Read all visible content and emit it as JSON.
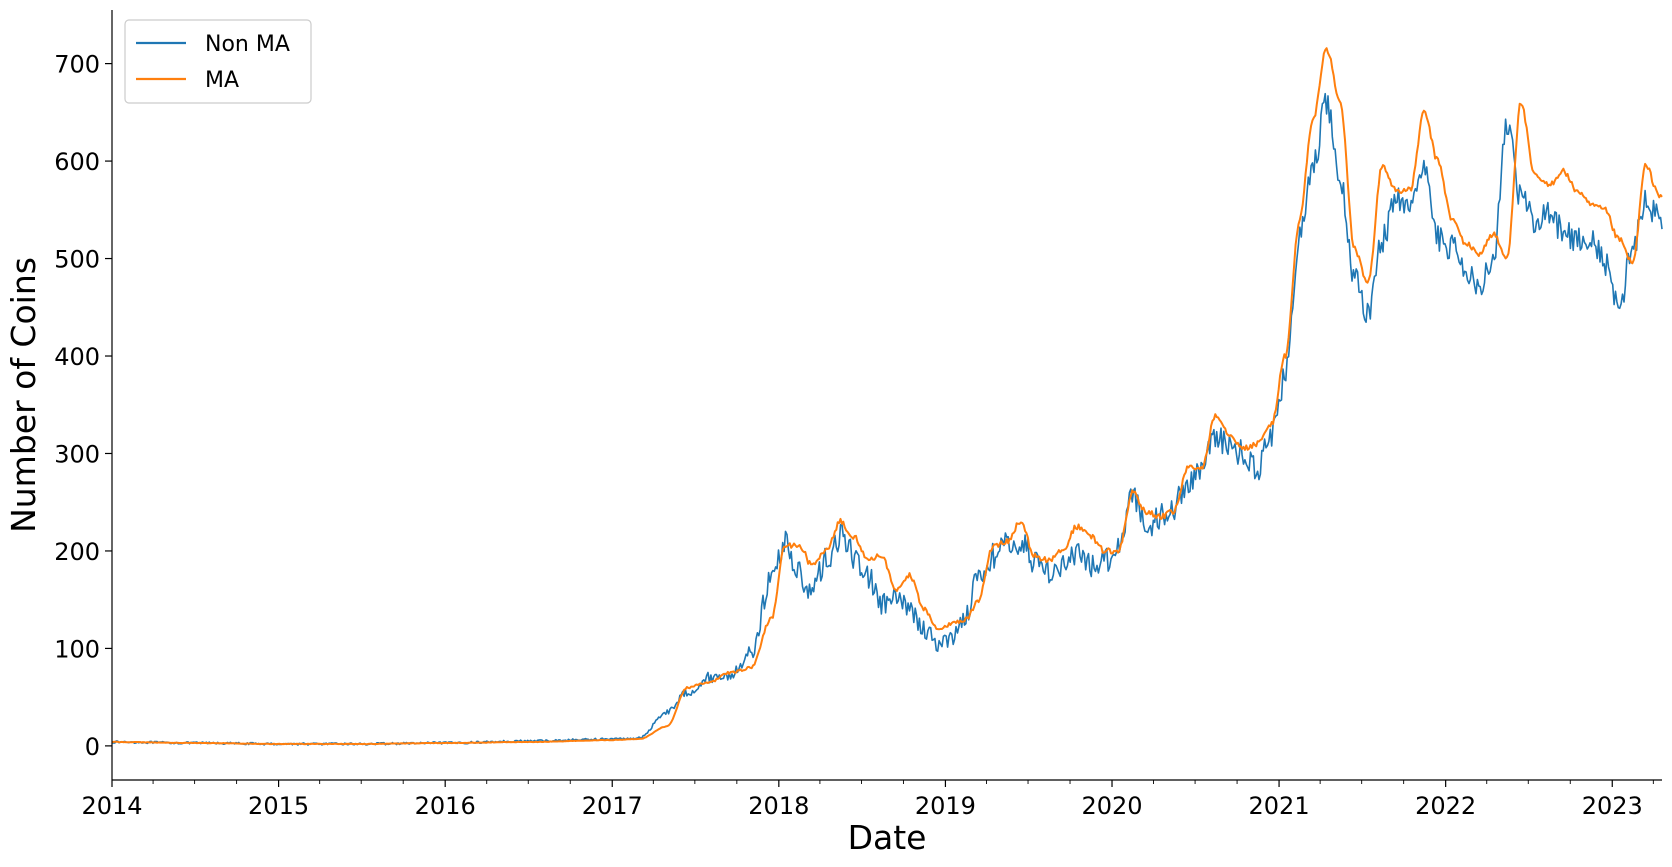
{
  "chart_data": {
    "type": "line",
    "title": "",
    "xlabel": "Date",
    "ylabel": "Number of Coins",
    "xlim": [
      "2014-01-01",
      "2023-04-20"
    ],
    "ylim": [
      -35,
      755
    ],
    "x_ticks": [
      "2014",
      "2015",
      "2016",
      "2017",
      "2018",
      "2019",
      "2020",
      "2021",
      "2022",
      "2023"
    ],
    "y_ticks": [
      0,
      100,
      200,
      300,
      400,
      500,
      600,
      700
    ],
    "grid": false,
    "legend_position": "top-left",
    "x": [
      "2014-01-01",
      "2014-07-01",
      "2015-01-01",
      "2015-07-01",
      "2016-01-01",
      "2016-07-01",
      "2017-01-01",
      "2017-03-01",
      "2017-05-01",
      "2017-06-15",
      "2017-08-01",
      "2017-09-15",
      "2017-11-01",
      "2017-12-15",
      "2018-01-15",
      "2018-02-15",
      "2018-03-15",
      "2018-04-15",
      "2018-05-15",
      "2018-06-15",
      "2018-07-15",
      "2018-08-15",
      "2018-09-15",
      "2018-10-15",
      "2018-11-15",
      "2018-12-15",
      "2019-01-15",
      "2019-02-15",
      "2019-03-15",
      "2019-04-15",
      "2019-05-15",
      "2019-06-15",
      "2019-07-15",
      "2019-08-15",
      "2019-09-15",
      "2019-10-15",
      "2019-11-15",
      "2019-12-15",
      "2020-01-15",
      "2020-02-15",
      "2020-03-15",
      "2020-04-15",
      "2020-05-15",
      "2020-06-15",
      "2020-07-15",
      "2020-08-15",
      "2020-09-15",
      "2020-10-15",
      "2020-11-15",
      "2020-12-15",
      "2021-01-15",
      "2021-02-15",
      "2021-03-15",
      "2021-04-15",
      "2021-05-15",
      "2021-06-15",
      "2021-07-15",
      "2021-08-15",
      "2021-09-15",
      "2021-10-15",
      "2021-11-15",
      "2021-12-15",
      "2022-01-15",
      "2022-02-15",
      "2022-03-15",
      "2022-04-15",
      "2022-05-15",
      "2022-06-15",
      "2022-07-15",
      "2022-08-15",
      "2022-09-15",
      "2022-10-15",
      "2022-11-15",
      "2022-12-15",
      "2023-01-15",
      "2023-02-15",
      "2023-03-15",
      "2023-04-15"
    ],
    "series": [
      {
        "name": "Non MA",
        "color": "#1f77b4",
        "values": [
          4,
          3,
          2,
          2,
          3,
          5,
          7,
          8,
          35,
          55,
          70,
          72,
          95,
          170,
          210,
          175,
          160,
          190,
          215,
          195,
          175,
          145,
          150,
          140,
          120,
          105,
          110,
          135,
          175,
          195,
          205,
          210,
          190,
          180,
          185,
          195,
          185,
          190,
          205,
          260,
          225,
          235,
          245,
          270,
          285,
          320,
          305,
          300,
          285,
          320,
          380,
          520,
          590,
          660,
          580,
          480,
          445,
          520,
          560,
          545,
          600,
          520,
          510,
          490,
          475,
          495,
          640,
          560,
          540,
          545,
          530,
          520,
          520,
          495,
          450,
          510,
          560,
          540
        ],
        "noise": 14
      },
      {
        "name": "MA",
        "color": "#ff7f0e",
        "values": [
          4,
          3,
          2,
          2,
          3,
          4,
          6,
          7,
          20,
          60,
          65,
          75,
          80,
          130,
          205,
          205,
          185,
          200,
          230,
          215,
          190,
          195,
          160,
          175,
          140,
          120,
          125,
          130,
          150,
          205,
          210,
          230,
          195,
          190,
          200,
          225,
          215,
          200,
          200,
          260,
          240,
          235,
          240,
          285,
          285,
          340,
          320,
          305,
          310,
          330,
          400,
          540,
          640,
          715,
          660,
          510,
          475,
          595,
          570,
          570,
          650,
          600,
          540,
          515,
          505,
          525,
          500,
          660,
          585,
          575,
          590,
          570,
          555,
          550,
          520,
          495,
          595,
          565
        ],
        "noise": 3
      }
    ]
  }
}
